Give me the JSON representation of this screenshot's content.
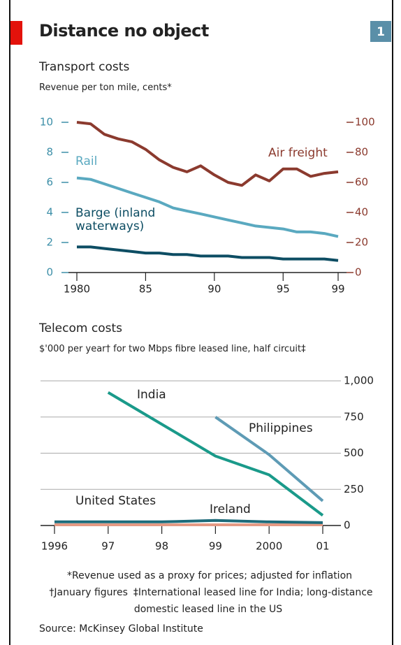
{
  "title": "Distance no object",
  "badge": "1",
  "chart_data": [
    {
      "type": "line",
      "title": "Transport costs",
      "subtitle": "Revenue per ton mile, cents*",
      "x": [
        1980,
        1981,
        1982,
        1983,
        1984,
        1985,
        1986,
        1987,
        1988,
        1989,
        1990,
        1991,
        1992,
        1993,
        1994,
        1995,
        1996,
        1997,
        1998,
        1999
      ],
      "xlim": [
        1980,
        1999
      ],
      "xticks": [
        1980,
        {
          "value": 1985,
          "label": "85"
        },
        {
          "value": 1990,
          "label": "90"
        },
        {
          "value": 1995,
          "label": "95"
        },
        {
          "value": 1999,
          "label": "99"
        }
      ],
      "ylim": [
        0,
        10
      ],
      "yticks": [
        0,
        2,
        4,
        6,
        8,
        10
      ],
      "y2lim": [
        0,
        100
      ],
      "y2ticks": [
        0,
        20,
        40,
        60,
        80,
        100
      ],
      "series": [
        {
          "name": "Rail",
          "color": "#5aa9c0",
          "values": [
            6.3,
            6.2,
            5.9,
            5.6,
            5.3,
            5.0,
            4.7,
            4.3,
            4.1,
            3.9,
            3.7,
            3.5,
            3.3,
            3.1,
            3.0,
            2.9,
            2.7,
            2.7,
            2.6,
            2.4
          ]
        },
        {
          "name": "Barge (inland waterways)",
          "color": "#0d4d63",
          "values": [
            1.7,
            1.7,
            1.6,
            1.5,
            1.4,
            1.3,
            1.3,
            1.2,
            1.2,
            1.1,
            1.1,
            1.1,
            1.0,
            1.0,
            1.0,
            0.9,
            0.9,
            0.9,
            0.9,
            0.8
          ]
        },
        {
          "name": "Air freight",
          "color": "#8b3a2e",
          "axis": "y2",
          "values": [
            100,
            99,
            92,
            89,
            87,
            82,
            75,
            70,
            67,
            71,
            65,
            60,
            58,
            65,
            61,
            69,
            69,
            64,
            66,
            67
          ]
        }
      ]
    },
    {
      "type": "line",
      "title": "Telecom costs",
      "subtitle": "$'000 per year† for two Mbps fibre leased line, half circuit‡",
      "x": [
        1996,
        1997,
        1998,
        1999,
        2000,
        2001
      ],
      "xlim": [
        1996,
        2001
      ],
      "xticks": [
        1996,
        {
          "value": 1997,
          "label": "97"
        },
        {
          "value": 1998,
          "label": "98"
        },
        {
          "value": 1999,
          "label": "99"
        },
        2000,
        {
          "value": 2001,
          "label": "01"
        }
      ],
      "ylim": [
        0,
        1000
      ],
      "yticks": [
        0,
        250,
        500,
        750,
        {
          "value": 1000,
          "label": "1,000"
        }
      ],
      "grid": true,
      "series": [
        {
          "name": "India",
          "color": "#1a9a8a",
          "values": [
            null,
            920,
            700,
            480,
            350,
            70
          ]
        },
        {
          "name": "Philippines",
          "color": "#5e9bb5",
          "values": [
            null,
            null,
            null,
            750,
            490,
            170
          ]
        },
        {
          "name": "United States",
          "color": "#e59a84",
          "values": [
            5,
            5,
            5,
            5,
            5,
            5
          ]
        },
        {
          "name": "Ireland",
          "color": "#1d6b7a",
          "values": [
            25,
            25,
            25,
            35,
            25,
            20
          ]
        }
      ]
    }
  ],
  "footnotes": [
    "*Revenue used as a proxy for prices; adjusted for inflation",
    "†January figures",
    "‡International leased line for India; long-distance domestic leased line in the US"
  ],
  "source": "Source: McKinsey Global Institute"
}
